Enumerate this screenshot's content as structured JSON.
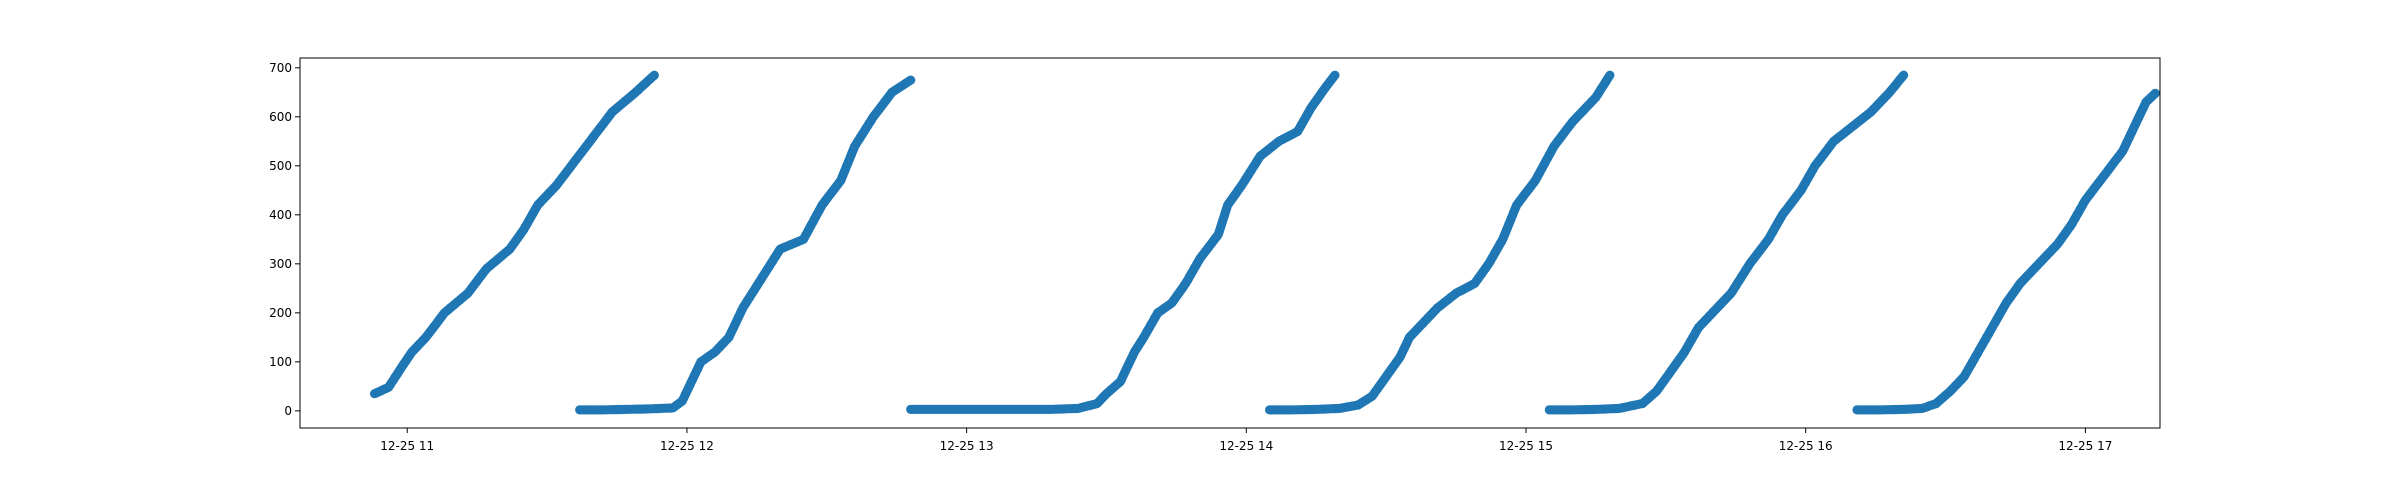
{
  "chart_data": {
    "type": "scatter",
    "title": "",
    "xlabel": "",
    "ylabel": "",
    "x_axis": {
      "type": "time",
      "range": [
        "12-25 10:37",
        "12-25 17:16"
      ],
      "ticks": [
        {
          "value": "12-25 11:00",
          "label": "12-25 11"
        },
        {
          "value": "12-25 12:00",
          "label": "12-25 12"
        },
        {
          "value": "12-25 13:00",
          "label": "12-25 13"
        },
        {
          "value": "12-25 14:00",
          "label": "12-25 14"
        },
        {
          "value": "12-25 15:00",
          "label": "12-25 15"
        },
        {
          "value": "12-25 16:00",
          "label": "12-25 16"
        },
        {
          "value": "12-25 17:00",
          "label": "12-25 17"
        }
      ]
    },
    "y_axis": {
      "range": [
        -35,
        720
      ],
      "ticks": [
        {
          "value": 0,
          "label": "0"
        },
        {
          "value": 100,
          "label": "100"
        },
        {
          "value": 200,
          "label": "200"
        },
        {
          "value": 300,
          "label": "300"
        },
        {
          "value": 400,
          "label": "400"
        },
        {
          "value": 500,
          "label": "500"
        },
        {
          "value": 600,
          "label": "600"
        },
        {
          "value": 700,
          "label": "700"
        }
      ]
    },
    "grid": false,
    "legend": "none",
    "marker_color": "#1f77b4",
    "series": [
      {
        "points": [
          [
            "12-25 10:53",
            35
          ],
          [
            "12-25 10:56",
            48
          ],
          [
            "12-25 10:59",
            92
          ],
          [
            "12-25 11:01",
            120
          ],
          [
            "12-25 11:04",
            150
          ],
          [
            "12-25 11:08",
            200
          ],
          [
            "12-25 11:13",
            240
          ],
          [
            "12-25 11:17",
            290
          ],
          [
            "12-25 11:22",
            330
          ],
          [
            "12-25 11:25",
            370
          ],
          [
            "12-25 11:28",
            420
          ],
          [
            "12-25 11:32",
            460
          ],
          [
            "12-25 11:36",
            510
          ],
          [
            "12-25 11:40",
            560
          ],
          [
            "12-25 11:44",
            610
          ],
          [
            "12-25 11:49",
            650
          ],
          [
            "12-25 11:53",
            685
          ]
        ]
      },
      {
        "points": [
          [
            "12-25 11:37",
            2
          ],
          [
            "12-25 11:42",
            2
          ],
          [
            "12-25 11:47",
            3
          ],
          [
            "12-25 11:52",
            4
          ],
          [
            "12-25 11:57",
            6
          ],
          [
            "12-25 11:59",
            20
          ],
          [
            "12-25 12:01",
            60
          ],
          [
            "12-25 12:03",
            100
          ],
          [
            "12-25 12:06",
            120
          ],
          [
            "12-25 12:09",
            150
          ],
          [
            "12-25 12:12",
            210
          ],
          [
            "12-25 12:16",
            270
          ],
          [
            "12-25 12:20",
            330
          ],
          [
            "12-25 12:25",
            350
          ],
          [
            "12-25 12:29",
            420
          ],
          [
            "12-25 12:33",
            470
          ],
          [
            "12-25 12:36",
            540
          ],
          [
            "12-25 12:40",
            600
          ],
          [
            "12-25 12:44",
            650
          ],
          [
            "12-25 12:48",
            675
          ]
        ]
      },
      {
        "points": [
          [
            "12-25 12:48",
            3
          ],
          [
            "12-25 12:58",
            3
          ],
          [
            "12-25 13:08",
            3
          ],
          [
            "12-25 13:18",
            3
          ],
          [
            "12-25 13:24",
            5
          ],
          [
            "12-25 13:28",
            15
          ],
          [
            "12-25 13:30",
            35
          ],
          [
            "12-25 13:33",
            60
          ],
          [
            "12-25 13:36",
            120
          ],
          [
            "12-25 13:38",
            150
          ],
          [
            "12-25 13:41",
            200
          ],
          [
            "12-25 13:44",
            220
          ],
          [
            "12-25 13:47",
            260
          ],
          [
            "12-25 13:50",
            310
          ],
          [
            "12-25 13:54",
            360
          ],
          [
            "12-25 13:56",
            420
          ],
          [
            "12-25 13:59",
            460
          ],
          [
            "12-25 14:03",
            520
          ],
          [
            "12-25 14:07",
            550
          ],
          [
            "12-25 14:11",
            570
          ],
          [
            "12-25 14:14",
            620
          ],
          [
            "12-25 14:17",
            660
          ],
          [
            "12-25 14:19",
            685
          ]
        ]
      },
      {
        "points": [
          [
            "12-25 14:05",
            2
          ],
          [
            "12-25 14:10",
            2
          ],
          [
            "12-25 14:15",
            3
          ],
          [
            "12-25 14:20",
            5
          ],
          [
            "12-25 14:24",
            12
          ],
          [
            "12-25 14:27",
            30
          ],
          [
            "12-25 14:30",
            70
          ],
          [
            "12-25 14:33",
            110
          ],
          [
            "12-25 14:35",
            150
          ],
          [
            "12-25 14:38",
            180
          ],
          [
            "12-25 14:41",
            210
          ],
          [
            "12-25 14:45",
            240
          ],
          [
            "12-25 14:49",
            260
          ],
          [
            "12-25 14:52",
            300
          ],
          [
            "12-25 14:55",
            350
          ],
          [
            "12-25 14:58",
            420
          ],
          [
            "12-25 15:02",
            470
          ],
          [
            "12-25 15:06",
            540
          ],
          [
            "12-25 15:10",
            590
          ],
          [
            "12-25 15:15",
            640
          ],
          [
            "12-25 15:18",
            685
          ]
        ]
      },
      {
        "points": [
          [
            "12-25 15:05",
            2
          ],
          [
            "12-25 15:10",
            2
          ],
          [
            "12-25 15:15",
            3
          ],
          [
            "12-25 15:20",
            5
          ],
          [
            "12-25 15:25",
            15
          ],
          [
            "12-25 15:28",
            40
          ],
          [
            "12-25 15:31",
            80
          ],
          [
            "12-25 15:34",
            120
          ],
          [
            "12-25 15:37",
            170
          ],
          [
            "12-25 15:40",
            200
          ],
          [
            "12-25 15:44",
            240
          ],
          [
            "12-25 15:48",
            300
          ],
          [
            "12-25 15:52",
            350
          ],
          [
            "12-25 15:55",
            400
          ],
          [
            "12-25 15:59",
            450
          ],
          [
            "12-25 16:02",
            500
          ],
          [
            "12-25 16:06",
            550
          ],
          [
            "12-25 16:10",
            580
          ],
          [
            "12-25 16:14",
            610
          ],
          [
            "12-25 16:18",
            650
          ],
          [
            "12-25 16:21",
            685
          ]
        ]
      },
      {
        "points": [
          [
            "12-25 16:11",
            2
          ],
          [
            "12-25 16:16",
            2
          ],
          [
            "12-25 16:21",
            3
          ],
          [
            "12-25 16:25",
            5
          ],
          [
            "12-25 16:28",
            15
          ],
          [
            "12-25 16:31",
            40
          ],
          [
            "12-25 16:34",
            70
          ],
          [
            "12-25 16:37",
            120
          ],
          [
            "12-25 16:40",
            170
          ],
          [
            "12-25 16:43",
            220
          ],
          [
            "12-25 16:46",
            260
          ],
          [
            "12-25 16:50",
            300
          ],
          [
            "12-25 16:54",
            340
          ],
          [
            "12-25 16:57",
            380
          ],
          [
            "12-25 17:00",
            430
          ],
          [
            "12-25 17:04",
            480
          ],
          [
            "12-25 17:08",
            530
          ],
          [
            "12-25 17:11",
            590
          ],
          [
            "12-25 17:13",
            630
          ],
          [
            "12-25 17:15",
            648
          ]
        ]
      }
    ]
  }
}
